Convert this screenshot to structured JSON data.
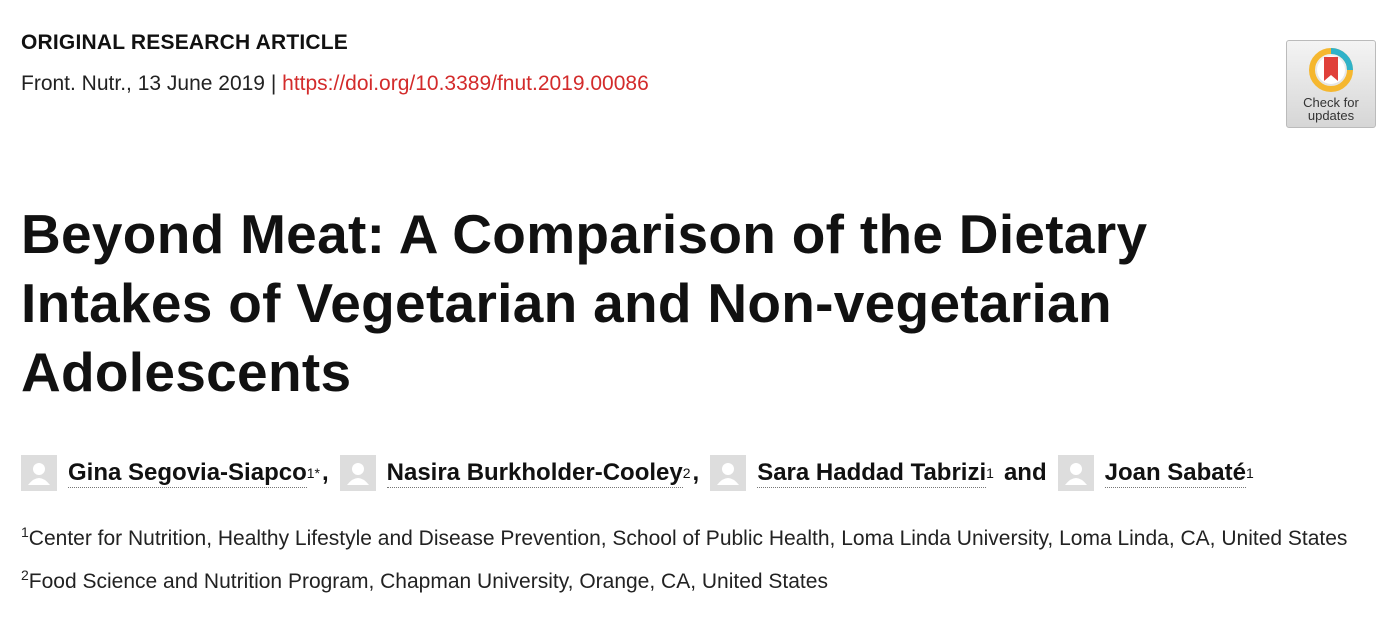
{
  "header": {
    "article_type": "ORIGINAL RESEARCH ARTICLE",
    "citation": "Front. Nutr., 13 June 2019",
    "separator": "|",
    "doi": "https://doi.org/10.3389/fnut.2019.00086"
  },
  "badge": {
    "lines": [
      "Check for",
      "updates"
    ]
  },
  "title": "Beyond Meat: A Comparison of the Dietary Intakes of Vegetarian and Non-vegetarian Adolescents",
  "authors": [
    {
      "name": "Gina Segovia-Siapco",
      "sup": "1*",
      "sep": ","
    },
    {
      "name": "Nasira Burkholder-Cooley",
      "sup": "2",
      "sep": ","
    },
    {
      "name": "Sara Haddad Tabrizi",
      "sup": "1",
      "sep": "and"
    },
    {
      "name": "Joan Sabaté",
      "sup": "1"
    }
  ],
  "affiliations": [
    {
      "sup": "1",
      "text": "Center for Nutrition, Healthy Lifestyle and Disease Prevention, School of Public Health, Loma Linda University, Loma Linda, CA, United States"
    },
    {
      "sup": "2",
      "text": "Food Science and Nutrition Program, Chapman University, Orange, CA, United States"
    }
  ]
}
